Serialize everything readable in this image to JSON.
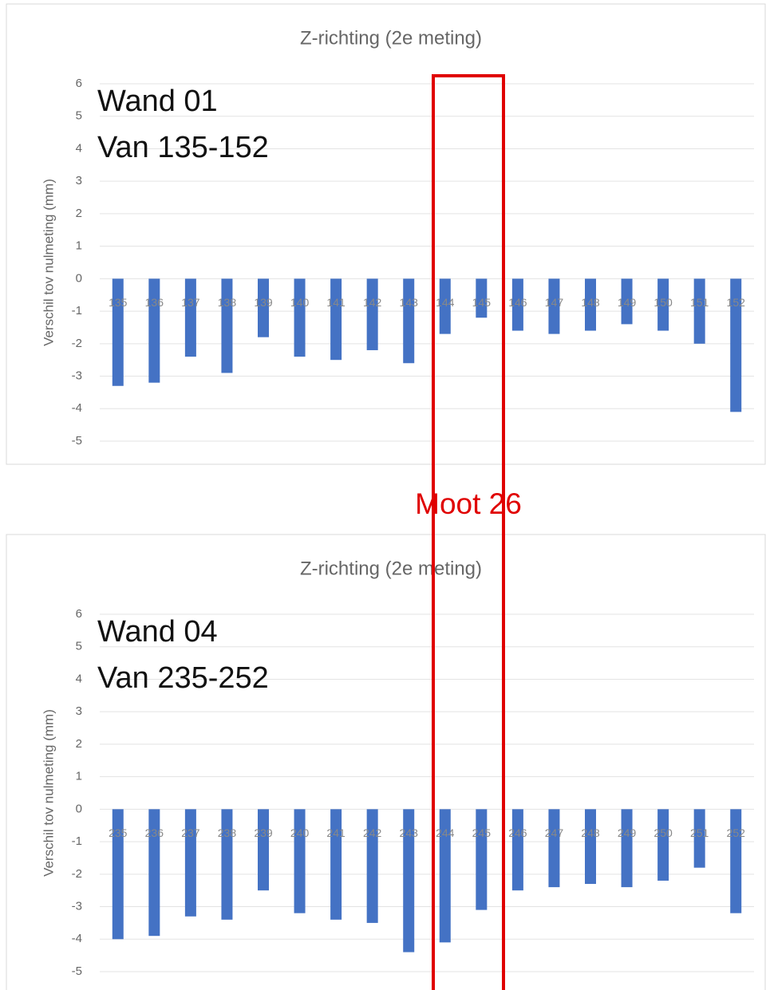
{
  "chart_data": [
    {
      "type": "bar",
      "title": "Z-richting (2e meting)",
      "y_label": "Verschil tov nulmeting (mm)",
      "annotations": [
        "Wand 01",
        "Van 135-152"
      ],
      "categories": [
        "135",
        "136",
        "137",
        "138",
        "139",
        "140",
        "141",
        "142",
        "143",
        "144",
        "145",
        "146",
        "147",
        "148",
        "149",
        "150",
        "151",
        "152"
      ],
      "values": [
        -3.3,
        -3.2,
        -2.4,
        -2.9,
        -1.8,
        -2.4,
        -2.5,
        -2.2,
        -2.6,
        -1.7,
        -1.2,
        -1.6,
        -1.7,
        -1.6,
        -1.4,
        -1.6,
        -2.0,
        -4.1
      ],
      "color": "#4472c4",
      "ylim": [
        -5,
        6
      ],
      "yticks": [
        -5,
        -4,
        -3,
        -2,
        -1,
        0,
        1,
        2,
        3,
        4,
        5,
        6
      ],
      "grid": true
    },
    {
      "type": "bar",
      "title": "Z-richting (2e meting)",
      "y_label": "Verschil tov nulmeting (mm)",
      "annotations": [
        "Wand 04",
        "Van 235-252"
      ],
      "categories": [
        "235",
        "236",
        "237",
        "238",
        "239",
        "240",
        "241",
        "242",
        "243",
        "244",
        "245",
        "246",
        "247",
        "248",
        "249",
        "250",
        "251",
        "252"
      ],
      "values": [
        -4.0,
        -3.9,
        -3.3,
        -3.4,
        -2.5,
        -3.2,
        -3.4,
        -3.5,
        -4.4,
        -4.1,
        -3.1,
        -2.5,
        -2.4,
        -2.3,
        -2.4,
        -2.2,
        -1.8,
        -3.2
      ],
      "color": "#4472c4",
      "ylim": [
        -5,
        6
      ],
      "yticks": [
        -5,
        -4,
        -3,
        -2,
        -1,
        0,
        1,
        2,
        3,
        4,
        5,
        6
      ],
      "grid": true
    }
  ],
  "overlay_label": "Moot 26"
}
